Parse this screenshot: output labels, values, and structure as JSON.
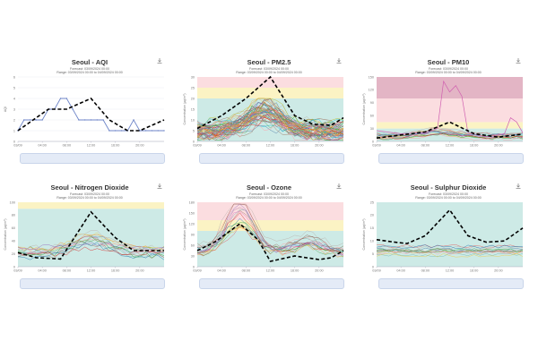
{
  "common": {
    "subtitle_forecast": "Forecast: 03/09/2024 00:00",
    "subtitle_range": "Range: 03/09/2024 00:00 to 04/09/2024 00:00",
    "download_icon": "download-icon",
    "x_ticks": [
      "03/09",
      "04:00",
      "08:00",
      "12:00",
      "16:00",
      "20:00"
    ]
  },
  "chart_data": [
    {
      "type": "line",
      "title": "Seoul - AQI",
      "ylabel": "AQI",
      "xlabel": "",
      "ylim": [
        0,
        6
      ],
      "yticks": [
        0,
        1,
        2,
        3,
        4,
        5,
        6
      ],
      "bands": [],
      "x_hours": [
        0,
        1,
        2,
        3,
        4,
        5,
        6,
        7,
        8,
        9,
        10,
        11,
        12,
        13,
        14,
        15,
        16,
        17,
        18,
        19,
        20,
        21,
        22,
        23,
        24
      ],
      "series": [
        {
          "name": "observed",
          "color": "#6f86c8",
          "style": "solid-markers",
          "values": [
            1,
            2,
            2,
            2,
            2,
            3,
            3,
            4,
            4,
            3,
            2,
            2,
            2,
            2,
            2,
            1,
            1,
            1,
            1,
            2,
            1,
            1,
            1,
            1,
            1
          ]
        },
        {
          "name": "forecast",
          "color": "#000000",
          "style": "dashed",
          "points": [
            [
              0,
              1
            ],
            [
              5,
              3
            ],
            [
              8,
              3
            ],
            [
              12,
              4
            ],
            [
              15,
              2
            ],
            [
              18,
              1
            ],
            [
              20,
              1
            ],
            [
              24,
              2
            ]
          ]
        }
      ]
    },
    {
      "type": "line",
      "title": "Seoul - PM2.5",
      "ylabel": "Concentration (µg/m³)",
      "xlabel": "",
      "ylim": [
        0,
        30
      ],
      "yticks": [
        0,
        5,
        10,
        15,
        20,
        25,
        30
      ],
      "bands": [
        {
          "from": 0,
          "to": 20,
          "color": "#cdeae6"
        },
        {
          "from": 20,
          "to": 25,
          "color": "#fbf3c4"
        },
        {
          "from": 25,
          "to": 30,
          "color": "#fbdde0"
        }
      ],
      "ensemble": {
        "count": 60,
        "base": 5,
        "peak_hour": 11,
        "peak": 9,
        "spread": 5,
        "max": 20
      },
      "series": [
        {
          "name": "forecast",
          "color": "#000000",
          "style": "dashed",
          "points": [
            [
              0,
              6
            ],
            [
              4,
              12
            ],
            [
              8,
              20
            ],
            [
              12,
              30
            ],
            [
              16,
              12
            ],
            [
              19,
              8
            ],
            [
              22,
              7.5
            ],
            [
              24,
              11
            ]
          ]
        }
      ]
    },
    {
      "type": "line",
      "title": "Seoul - PM10",
      "ylabel": "Concentration (µg/m³)",
      "xlabel": "",
      "ylim": [
        0,
        150
      ],
      "yticks": [
        0,
        30,
        60,
        90,
        120,
        150
      ],
      "bands": [
        {
          "from": 0,
          "to": 30,
          "color": "#cdeae6"
        },
        {
          "from": 30,
          "to": 45,
          "color": "#fbf3c4"
        },
        {
          "from": 45,
          "to": 100,
          "color": "#fbdde0"
        },
        {
          "from": 100,
          "to": 150,
          "color": "#e3b5c5"
        }
      ],
      "ensemble": {
        "count": 14,
        "base": 12,
        "peak_hour": 10,
        "peak": 10,
        "spread": 8,
        "max": 45
      },
      "series": [
        {
          "name": "outlier",
          "color": "#d060b0",
          "style": "solid",
          "points": [
            [
              0,
              25
            ],
            [
              4,
              18
            ],
            [
              8,
              20
            ],
            [
              10,
              30
            ],
            [
              11,
              140
            ],
            [
              12,
              115
            ],
            [
              13,
              130
            ],
            [
              14,
              105
            ],
            [
              15,
              20
            ],
            [
              18,
              10
            ],
            [
              21,
              18
            ],
            [
              22,
              55
            ],
            [
              23,
              45
            ],
            [
              24,
              20
            ]
          ]
        },
        {
          "name": "forecast",
          "color": "#000000",
          "style": "dashed",
          "points": [
            [
              0,
              8
            ],
            [
              4,
              15
            ],
            [
              8,
              22
            ],
            [
              12,
              45
            ],
            [
              16,
              18
            ],
            [
              20,
              10
            ],
            [
              24,
              17
            ]
          ]
        }
      ]
    },
    {
      "type": "line",
      "title": "Seoul - Nitrogen Dioxide",
      "ylabel": "Concentration (µg/m³)",
      "xlabel": "",
      "ylim": [
        0,
        100
      ],
      "yticks": [
        0,
        20,
        40,
        60,
        80,
        100
      ],
      "bands": [
        {
          "from": 0,
          "to": 90,
          "color": "#cdeae6"
        },
        {
          "from": 90,
          "to": 100,
          "color": "#fbf3c4"
        }
      ],
      "ensemble": {
        "count": 14,
        "base": 22,
        "peak_hour": 12,
        "peak": 18,
        "spread": 10,
        "max": 65
      },
      "series": [
        {
          "name": "forecast",
          "color": "#000000",
          "style": "dashed",
          "points": [
            [
              0,
              22
            ],
            [
              3,
              14
            ],
            [
              7,
              12
            ],
            [
              12,
              85
            ],
            [
              16,
              45
            ],
            [
              19,
              25
            ],
            [
              24,
              25
            ]
          ]
        }
      ]
    },
    {
      "type": "line",
      "title": "Seoul - Ozone",
      "ylabel": "Concentration (µg/m³)",
      "xlabel": "",
      "ylim": [
        0,
        180
      ],
      "yticks": [
        0,
        30,
        60,
        90,
        120,
        150,
        180
      ],
      "bands": [
        {
          "from": 0,
          "to": 100,
          "color": "#cdeae6"
        },
        {
          "from": 100,
          "to": 130,
          "color": "#fbf3c4"
        },
        {
          "from": 130,
          "to": 180,
          "color": "#fbdde0"
        }
      ],
      "ensemble": {
        "count": 16,
        "base": 45,
        "peak_hour": 7,
        "peak": 100,
        "spread": 20,
        "max": 175,
        "profile": "ozone"
      },
      "series": [
        {
          "name": "forecast",
          "color": "#000000",
          "style": "dashed",
          "points": [
            [
              0,
              45
            ],
            [
              3,
              70
            ],
            [
              7,
              120
            ],
            [
              10,
              75
            ],
            [
              12,
              15
            ],
            [
              16,
              30
            ],
            [
              20,
              20
            ],
            [
              22,
              25
            ],
            [
              24,
              45
            ]
          ]
        }
      ]
    },
    {
      "type": "line",
      "title": "Seoul - Sulphur Dioxide",
      "ylabel": "Concentration (µg/m³)",
      "xlabel": "",
      "ylim": [
        0,
        25
      ],
      "yticks": [
        0,
        5,
        10,
        15,
        20,
        25
      ],
      "bands": [
        {
          "from": 0,
          "to": 25,
          "color": "#cdeae6"
        }
      ],
      "ensemble": {
        "count": 12,
        "base": 6,
        "peak_hour": 12,
        "peak": 0.5,
        "spread": 2.5,
        "max": 9.5,
        "profile": "flat"
      },
      "series": [
        {
          "name": "forecast",
          "color": "#000000",
          "style": "dashed",
          "points": [
            [
              0,
              10.5
            ],
            [
              3,
              9.5
            ],
            [
              5,
              9
            ],
            [
              8,
              12
            ],
            [
              12,
              22
            ],
            [
              15,
              12
            ],
            [
              18,
              9.5
            ],
            [
              21,
              10
            ],
            [
              24,
              15
            ]
          ]
        }
      ]
    }
  ]
}
